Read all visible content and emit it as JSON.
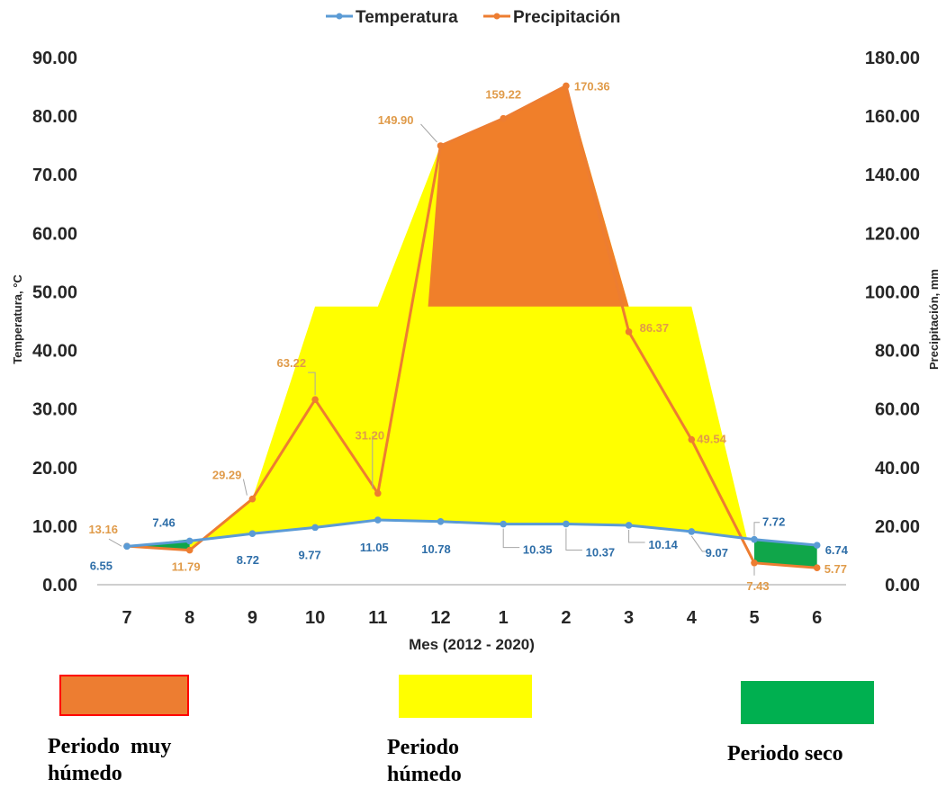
{
  "chart_data": {
    "type": "line",
    "categories": [
      "7",
      "8",
      "9",
      "10",
      "11",
      "12",
      "1",
      "2",
      "3",
      "4",
      "5",
      "6"
    ],
    "series": [
      {
        "name": "Temperatura",
        "axis": "left",
        "color": "#5b9bd5",
        "values": [
          6.55,
          7.46,
          8.72,
          9.77,
          11.05,
          10.78,
          10.35,
          10.37,
          10.14,
          9.07,
          7.72,
          6.74
        ],
        "labels": [
          "6.55",
          "7.46",
          "8.72",
          "9.77",
          "11.05",
          "10.78",
          "10.35",
          "10.37",
          "10.14",
          "9.07",
          "7.72",
          "6.74"
        ]
      },
      {
        "name": "Precipitación",
        "axis": "right",
        "color": "#ed7d31",
        "values": [
          13.16,
          11.79,
          29.29,
          63.22,
          31.2,
          149.9,
          159.22,
          170.36,
          86.37,
          49.54,
          7.43,
          5.77
        ],
        "labels": [
          "13.16",
          "11.79",
          "29.29",
          "63.22",
          "31.20",
          "149.90",
          "159.22",
          "170.36",
          "86.37",
          "49.54",
          "7.43",
          "5.77"
        ]
      }
    ],
    "left_axis": {
      "title": "Temperatura, °C",
      "ylim": [
        0,
        90
      ],
      "ticks": [
        "0.00",
        "10.00",
        "20.00",
        "30.00",
        "40.00",
        "50.00",
        "60.00",
        "70.00",
        "80.00",
        "90.00"
      ]
    },
    "right_axis": {
      "title": "Precipitación, mm",
      "ylim": [
        0,
        180
      ],
      "ticks": [
        "0.00",
        "20.00",
        "40.00",
        "60.00",
        "80.00",
        "100.00",
        "120.00",
        "140.00",
        "160.00",
        "180.00"
      ]
    },
    "xlabel": "Mes (2012 - 2020)",
    "threshold_precipitation": 95,
    "colors": {
      "muy_humedo": "#f07f2a",
      "humedo": "#ffff00",
      "seco": "#10a64a",
      "axis": "#bfbfbf",
      "temp_label": "#2e6ea8",
      "precip_label": "#e09b4a"
    }
  },
  "legend": {
    "temperatura": "Temperatura",
    "precipitacion": "Precipitación"
  },
  "key": {
    "muy_humedo": {
      "line1": "Periodo  muy",
      "line2": "húmedo"
    },
    "humedo": {
      "line1": "Periodo",
      "line2": "húmedo"
    },
    "seco": {
      "line1": "Periodo seco"
    }
  }
}
